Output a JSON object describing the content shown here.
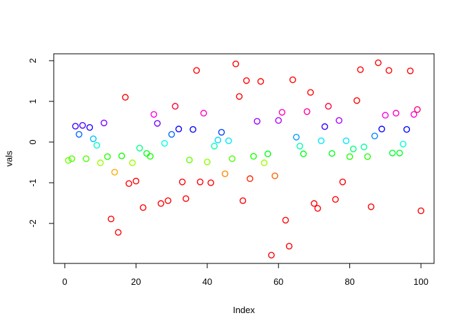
{
  "figure": {
    "background": "#ffffff",
    "frame_color": "#000000",
    "tick_color": "#000000",
    "text_color": "#000000"
  },
  "chart_data": {
    "type": "scatter",
    "title": "",
    "xlabel": "Index",
    "ylabel": "vals",
    "x_ticks": [
      0,
      20,
      40,
      60,
      80,
      100
    ],
    "y_ticks": [
      -2,
      -1,
      0,
      1,
      2
    ],
    "xlim": [
      -3,
      104
    ],
    "ylim": [
      -2.95,
      2.15
    ],
    "grid": "off",
    "legend": "none",
    "marker": "open-circle",
    "n_points": 100,
    "color_rule": "rainbow hue by value: hue = clamp((value + 0.95) / 1.9, 0, 1) * 360 deg, hsl(hue,100%,50%); red at both extremes, orange ~ -0.8, green ~ -0.4, cyan ~ 0, blue ~ 0.3, violet ~ 0.5, magenta ~ 0.7",
    "points": [
      [
        1,
        -0.45
      ],
      [
        2,
        -0.41
      ],
      [
        3,
        0.39
      ],
      [
        4,
        0.19
      ],
      [
        5,
        0.41
      ],
      [
        6,
        -0.41
      ],
      [
        7,
        0.36
      ],
      [
        8,
        0.08
      ],
      [
        9,
        -0.08
      ],
      [
        10,
        -0.51
      ],
      [
        11,
        0.47
      ],
      [
        12,
        -0.36
      ],
      [
        13,
        -1.89
      ],
      [
        14,
        -0.74
      ],
      [
        15,
        -2.22
      ],
      [
        16,
        -0.34
      ],
      [
        17,
        1.1
      ],
      [
        18,
        -1.02
      ],
      [
        19,
        -0.51
      ],
      [
        20,
        -0.96
      ],
      [
        21,
        -0.15
      ],
      [
        22,
        -1.61
      ],
      [
        23,
        -0.28
      ],
      [
        24,
        -0.35
      ],
      [
        25,
        0.68
      ],
      [
        26,
        0.46
      ],
      [
        27,
        -1.51
      ],
      [
        28,
        -0.03
      ],
      [
        29,
        -1.44
      ],
      [
        30,
        0.19
      ],
      [
        31,
        0.88
      ],
      [
        32,
        0.32
      ],
      [
        33,
        -0.98
      ],
      [
        34,
        -1.39
      ],
      [
        35,
        -0.44
      ],
      [
        36,
        0.31
      ],
      [
        37,
        1.76
      ],
      [
        38,
        -0.98
      ],
      [
        39,
        0.71
      ],
      [
        40,
        -0.49
      ],
      [
        41,
        -1.0
      ],
      [
        42,
        -0.1
      ],
      [
        43,
        0.05
      ],
      [
        44,
        0.24
      ],
      [
        45,
        -0.78
      ],
      [
        46,
        0.03
      ],
      [
        47,
        -0.41
      ],
      [
        48,
        1.92
      ],
      [
        49,
        1.12
      ],
      [
        50,
        -1.44
      ],
      [
        51,
        1.51
      ],
      [
        52,
        -0.9
      ],
      [
        53,
        -0.35
      ],
      [
        54,
        0.51
      ],
      [
        55,
        1.49
      ],
      [
        56,
        -0.51
      ],
      [
        57,
        -0.29
      ],
      [
        58,
        -2.78
      ],
      [
        59,
        -0.83
      ],
      [
        60,
        0.53
      ],
      [
        61,
        0.73
      ],
      [
        62,
        -1.92
      ],
      [
        63,
        -2.56
      ],
      [
        64,
        1.53
      ],
      [
        65,
        0.12
      ],
      [
        66,
        -0.1
      ],
      [
        67,
        -0.29
      ],
      [
        68,
        0.75
      ],
      [
        69,
        1.22
      ],
      [
        70,
        -1.51
      ],
      [
        71,
        -1.63
      ],
      [
        72,
        0.03
      ],
      [
        73,
        0.38
      ],
      [
        74,
        0.88
      ],
      [
        75,
        -0.28
      ],
      [
        76,
        -1.41
      ],
      [
        77,
        0.53
      ],
      [
        78,
        -0.98
      ],
      [
        79,
        0.03
      ],
      [
        80,
        -0.36
      ],
      [
        81,
        -0.17
      ],
      [
        82,
        1.02
      ],
      [
        83,
        1.78
      ],
      [
        84,
        -0.12
      ],
      [
        85,
        -0.36
      ],
      [
        86,
        -1.59
      ],
      [
        87,
        0.15
      ],
      [
        88,
        1.95
      ],
      [
        89,
        0.32
      ],
      [
        90,
        0.66
      ],
      [
        91,
        1.76
      ],
      [
        92,
        -0.27
      ],
      [
        93,
        0.71
      ],
      [
        94,
        -0.27
      ],
      [
        95,
        -0.05
      ],
      [
        96,
        0.31
      ],
      [
        97,
        1.75
      ],
      [
        98,
        0.68
      ],
      [
        99,
        0.8
      ],
      [
        100,
        -1.69
      ]
    ]
  }
}
